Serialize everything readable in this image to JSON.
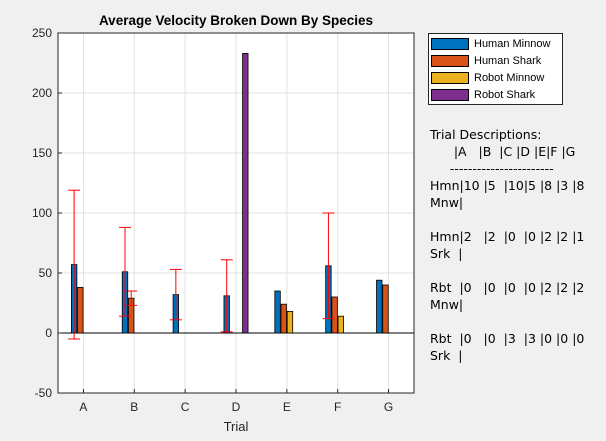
{
  "chart_data": {
    "type": "bar",
    "title": "Average Velocity Broken Down By Species",
    "xlabel": "Trial",
    "ylabel": "",
    "categories": [
      "A",
      "B",
      "C",
      "D",
      "E",
      "F",
      "G"
    ],
    "ylim": [
      -50,
      250
    ],
    "yticks": [
      -50,
      0,
      50,
      100,
      150,
      200,
      250
    ],
    "grid": true,
    "legend_position": "outside-right",
    "series": [
      {
        "name": "Human Minnow",
        "color": "#0072bd",
        "values": [
          57,
          51,
          32,
          31,
          35,
          56,
          44
        ],
        "errors": [
          62,
          37,
          21,
          30,
          0,
          44,
          0
        ]
      },
      {
        "name": "Human Shark",
        "color": "#d95319",
        "values": [
          38,
          29,
          0,
          0,
          24,
          30,
          40
        ],
        "errors": [
          0,
          6,
          0,
          0,
          0,
          0,
          0
        ]
      },
      {
        "name": "Robot Minnow",
        "color": "#edb120",
        "values": [
          0,
          0,
          0,
          0,
          18,
          14,
          0
        ],
        "errors": [
          0,
          0,
          0,
          0,
          0,
          0,
          0
        ]
      },
      {
        "name": "Robot Shark",
        "color": "#7e2f8e",
        "values": [
          0,
          0,
          0,
          233,
          0,
          0,
          0
        ],
        "errors": [
          0,
          0,
          0,
          0,
          0,
          0,
          0
        ]
      }
    ],
    "errorbar_color": "#ff0000"
  },
  "descriptions": {
    "heading": "Trial Descriptions:",
    "lines": [
      "      |A   |B  |C |D |E|F |G",
      "     -----------------------",
      "Hmn|10 |5  |10|5 |8 |3 |8",
      "Mnw|",
      "",
      "Hmn|2   |2  |0  |0 |2 |2 |1",
      "Srk  |",
      "",
      "Rbt  |0   |0  |0  |0 |2 |2 |2",
      "Mnw|",
      "",
      "Rbt  |0   |0  |3  |3 |0 |0 |0",
      "Srk  |"
    ]
  }
}
